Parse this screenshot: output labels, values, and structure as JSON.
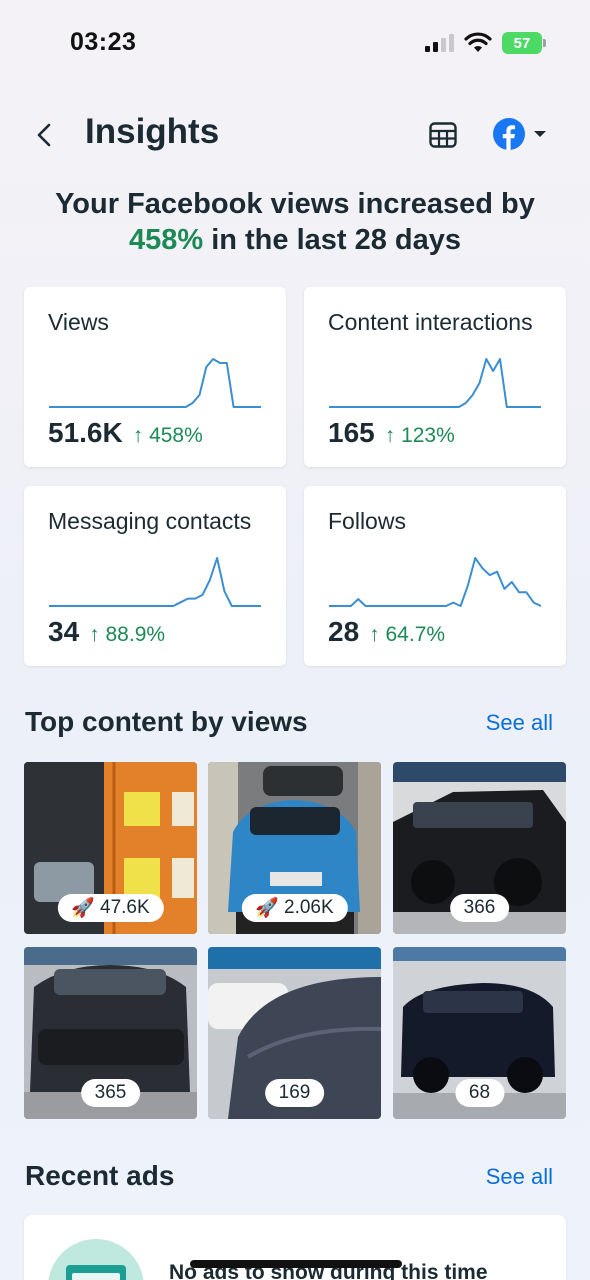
{
  "status_bar": {
    "time": "03:23",
    "battery": "57"
  },
  "header": {
    "title": "Insights",
    "icons": {
      "back": "chevron-left-icon",
      "table": "table-grid-icon",
      "account": "facebook-logo-icon",
      "dropdown": "caret-down-icon"
    }
  },
  "headline": {
    "prefix": "Your Facebook views increased by",
    "percent": "458%",
    "suffix": " in the last 28 days"
  },
  "metrics": [
    {
      "title": "Views",
      "value": "51.6K",
      "change": "458%",
      "trend": [
        1,
        1,
        1,
        1,
        1,
        1,
        1,
        1,
        1,
        1,
        1,
        1,
        1,
        1,
        1,
        1,
        1,
        1,
        1,
        1,
        1,
        2,
        4,
        11,
        13,
        12,
        12,
        1,
        1,
        1,
        1,
        1
      ]
    },
    {
      "title": "Content interactions",
      "value": "165",
      "change": "123%",
      "trend": [
        1,
        1,
        1,
        1,
        1,
        1,
        1,
        1,
        1,
        1,
        1,
        1,
        1,
        1,
        1,
        1,
        1,
        1,
        1,
        1,
        2,
        4,
        7,
        13,
        10,
        13,
        1,
        1,
        1,
        1,
        1,
        1
      ]
    },
    {
      "title": "Messaging contacts",
      "value": "34",
      "change": "88.9%",
      "trend": [
        1,
        1,
        1,
        1,
        1,
        1,
        1,
        1,
        1,
        1,
        1,
        1,
        1,
        1,
        1,
        1,
        1,
        1,
        2,
        3,
        3,
        4,
        8,
        14,
        5,
        1,
        1,
        1,
        1,
        1
      ]
    },
    {
      "title": "Follows",
      "value": "28",
      "change": "64.7%",
      "trend": [
        1,
        1,
        1,
        1,
        3,
        1,
        1,
        1,
        1,
        1,
        1,
        1,
        1,
        1,
        1,
        1,
        1,
        2,
        1,
        7,
        15,
        12,
        10,
        11,
        6,
        8,
        5,
        5,
        2,
        1
      ]
    }
  ],
  "top_content": {
    "title": "Top content by views",
    "see_all": "See all",
    "items": [
      {
        "views": "47.6K",
        "boosted": true
      },
      {
        "views": "2.06K",
        "boosted": true
      },
      {
        "views": "366",
        "boosted": false
      },
      {
        "views": "365",
        "boosted": false
      },
      {
        "views": "169",
        "boosted": false
      },
      {
        "views": "68",
        "boosted": false
      }
    ]
  },
  "recent_ads": {
    "title": "Recent ads",
    "see_all": "See all",
    "empty_text": "No ads to show during this time"
  },
  "colors": {
    "accent_green": "#1d8a55",
    "link_blue": "#0a6fd6",
    "sparkline": "#3b8ed0",
    "facebook": "#1877f2"
  }
}
